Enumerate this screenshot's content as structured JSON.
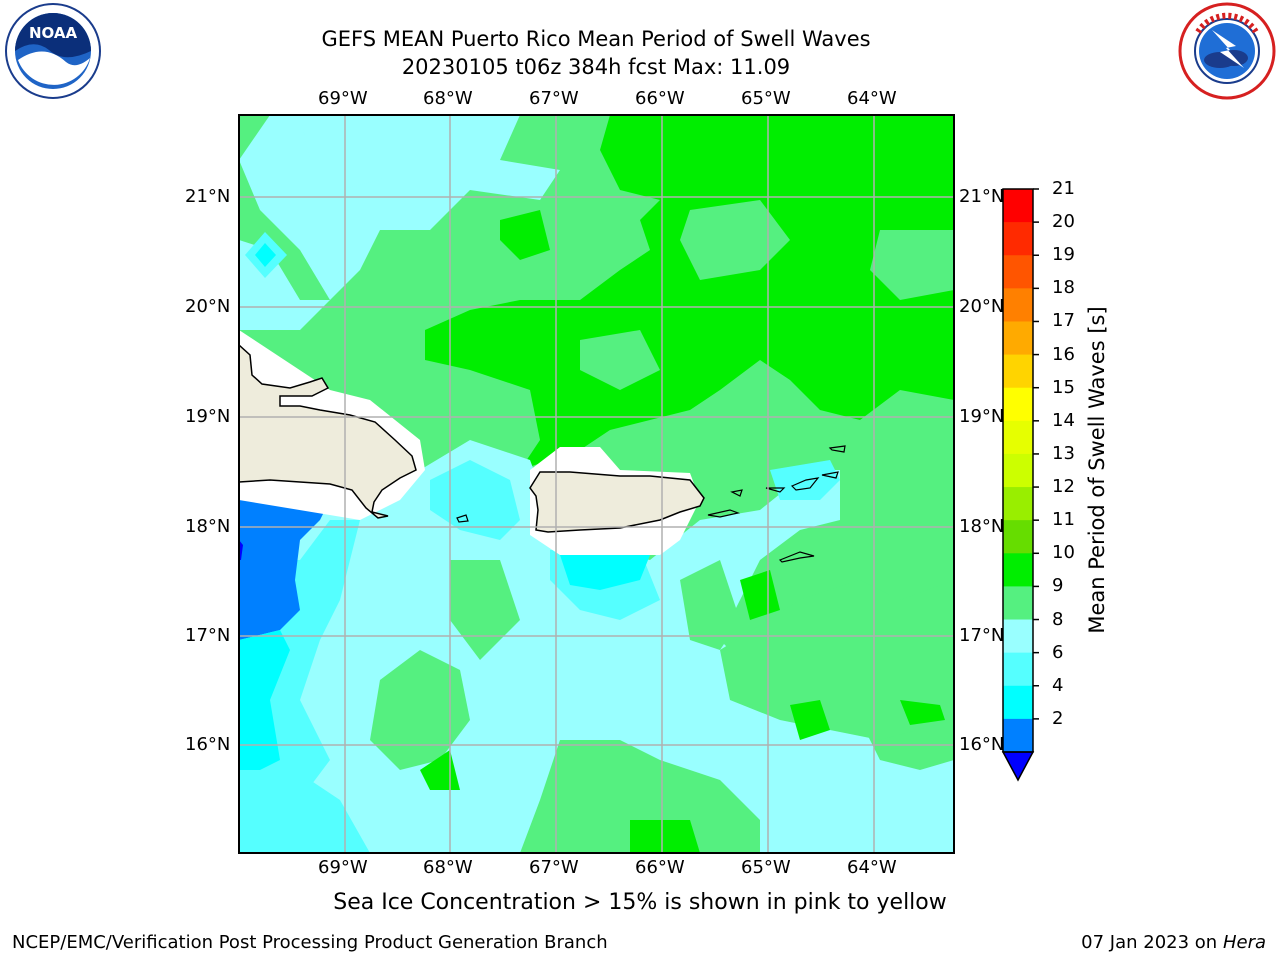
{
  "header": {
    "title_line1": "GEFS MEAN Puerto Rico Mean Period of Swell Waves",
    "title_line2": "20230105 t06z 384h fcst   Max: 11.09"
  },
  "axes": {
    "lon_labels": [
      "69°W",
      "68°W",
      "67°W",
      "66°W",
      "65°W",
      "64°W"
    ],
    "lat_labels": [
      "21°N",
      "20°N",
      "19°N",
      "18°N",
      "17°N",
      "16°N"
    ]
  },
  "colorbar": {
    "label": "Mean Period of Swell Waves [s]",
    "ticks": [
      "21",
      "20",
      "19",
      "18",
      "17",
      "16",
      "15",
      "14",
      "13",
      "12",
      "11",
      "10",
      "9",
      "8",
      "6",
      "4",
      "2"
    ],
    "colors": [
      "#ff0000",
      "#ff2a00",
      "#ff5500",
      "#ff8000",
      "#ffaa00",
      "#ffd400",
      "#ffff00",
      "#e6ff00",
      "#ccff00",
      "#99ee00",
      "#66dd00",
      "#00ee00",
      "#55f080",
      "#99ffff",
      "#55ffff",
      "#00ffff",
      "#0080ff"
    ],
    "under_color": "#0000ff"
  },
  "map_colors": {
    "green_dark": "#00ee00",
    "green_light": "#55f080",
    "cyan_light": "#99ffff",
    "cyan": "#55ffff",
    "aqua": "#00ffff",
    "blue": "#0080ff",
    "land": "#eeecdc"
  },
  "footer": {
    "note": "Sea Ice Concentration > 15% is shown in pink to yellow",
    "credit": "NCEP/EMC/Verification Post Processing Product Generation Branch",
    "date": "07 Jan 2023 on ",
    "machine": "Hera"
  },
  "logos": {
    "left": "NOAA",
    "right_icon": "national-weather-service-logo"
  }
}
